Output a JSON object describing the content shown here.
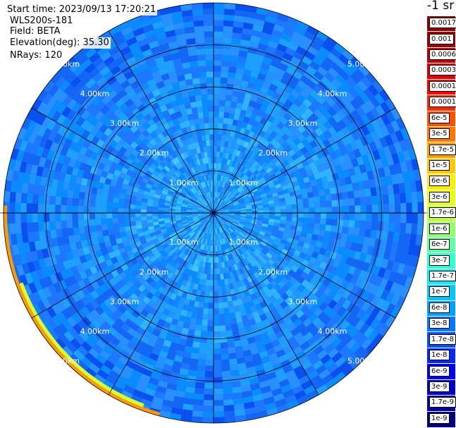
{
  "info": {
    "start_time": "Start time: 2023/09/13 17:20:21",
    "instrument": "WLS200s-181",
    "field": "Field: BETA",
    "elevation": "Elevation(deg): 35.30",
    "nrays": "NRays: 120"
  },
  "chart_data": {
    "type": "heatmap",
    "projection": "polar (PPI scan)",
    "title": "",
    "units_label": "-1 sr",
    "field": "BETA",
    "elevation_deg": 35.3,
    "n_rays": 120,
    "radial_max_km": 5.0,
    "range_rings_km": [
      1.0,
      2.0,
      3.0,
      4.0,
      5.0
    ],
    "ring_labels": [
      "1.00km",
      "2.00km",
      "3.00km",
      "4.00km",
      "5.00km"
    ],
    "azimuth_spokes_deg": [
      0,
      30,
      60,
      90,
      120,
      150,
      180,
      210,
      240,
      270,
      300,
      330
    ],
    "dominant_value_range": [
      "1e-8",
      "1e-7"
    ],
    "edge_values_southwest": [
      "1e-6",
      "1e-5"
    ],
    "colorbar": {
      "colors": [
        "#80ff80",
        "#ffff00",
        "#ffd800",
        "#ff6c00",
        "#ff0000",
        "#c00000",
        "#8b0000"
      ],
      "ticks": [
        {
          "label": "0.0017",
          "color": "#8b0000"
        },
        {
          "label": "0.001",
          "color": "#a00000"
        },
        {
          "label": "0.0006",
          "color": "#c00000"
        },
        {
          "label": "0.0003",
          "color": "#e00000"
        },
        {
          "label": "0.00017",
          "color": "#ff0000"
        },
        {
          "label": "0.0001",
          "color": "#ff2800"
        },
        {
          "label": "6e-5",
          "color": "#ff5000"
        },
        {
          "label": "3e-5",
          "color": "#ff7800"
        },
        {
          "label": "1.7e-5",
          "color": "#ffa000"
        },
        {
          "label": "1e-5",
          "color": "#ffc800"
        },
        {
          "label": "6e-6",
          "color": "#ffee00"
        },
        {
          "label": "3e-6",
          "color": "#e8ff10"
        },
        {
          "label": "1.7e-6",
          "color": "#c0ff40"
        },
        {
          "label": "1e-6",
          "color": "#90ff70"
        },
        {
          "label": "6e-7",
          "color": "#60ffa0"
        },
        {
          "label": "3e-7",
          "color": "#30ffd0"
        },
        {
          "label": "1.7e-7",
          "color": "#00f0ff"
        },
        {
          "label": "1e-7",
          "color": "#00c8ff"
        },
        {
          "label": "6e-8",
          "color": "#00a0ff"
        },
        {
          "label": "3e-8",
          "color": "#0078ff"
        },
        {
          "label": "1.7e-8",
          "color": "#0050ff"
        },
        {
          "label": "1e-8",
          "color": "#0028ff"
        },
        {
          "label": "6e-9",
          "color": "#0000f0"
        },
        {
          "label": "3e-9",
          "color": "#0000c8"
        },
        {
          "label": "1.7e-9",
          "color": "#0000a0"
        },
        {
          "label": "1e-9",
          "color": "#000078"
        }
      ]
    }
  }
}
